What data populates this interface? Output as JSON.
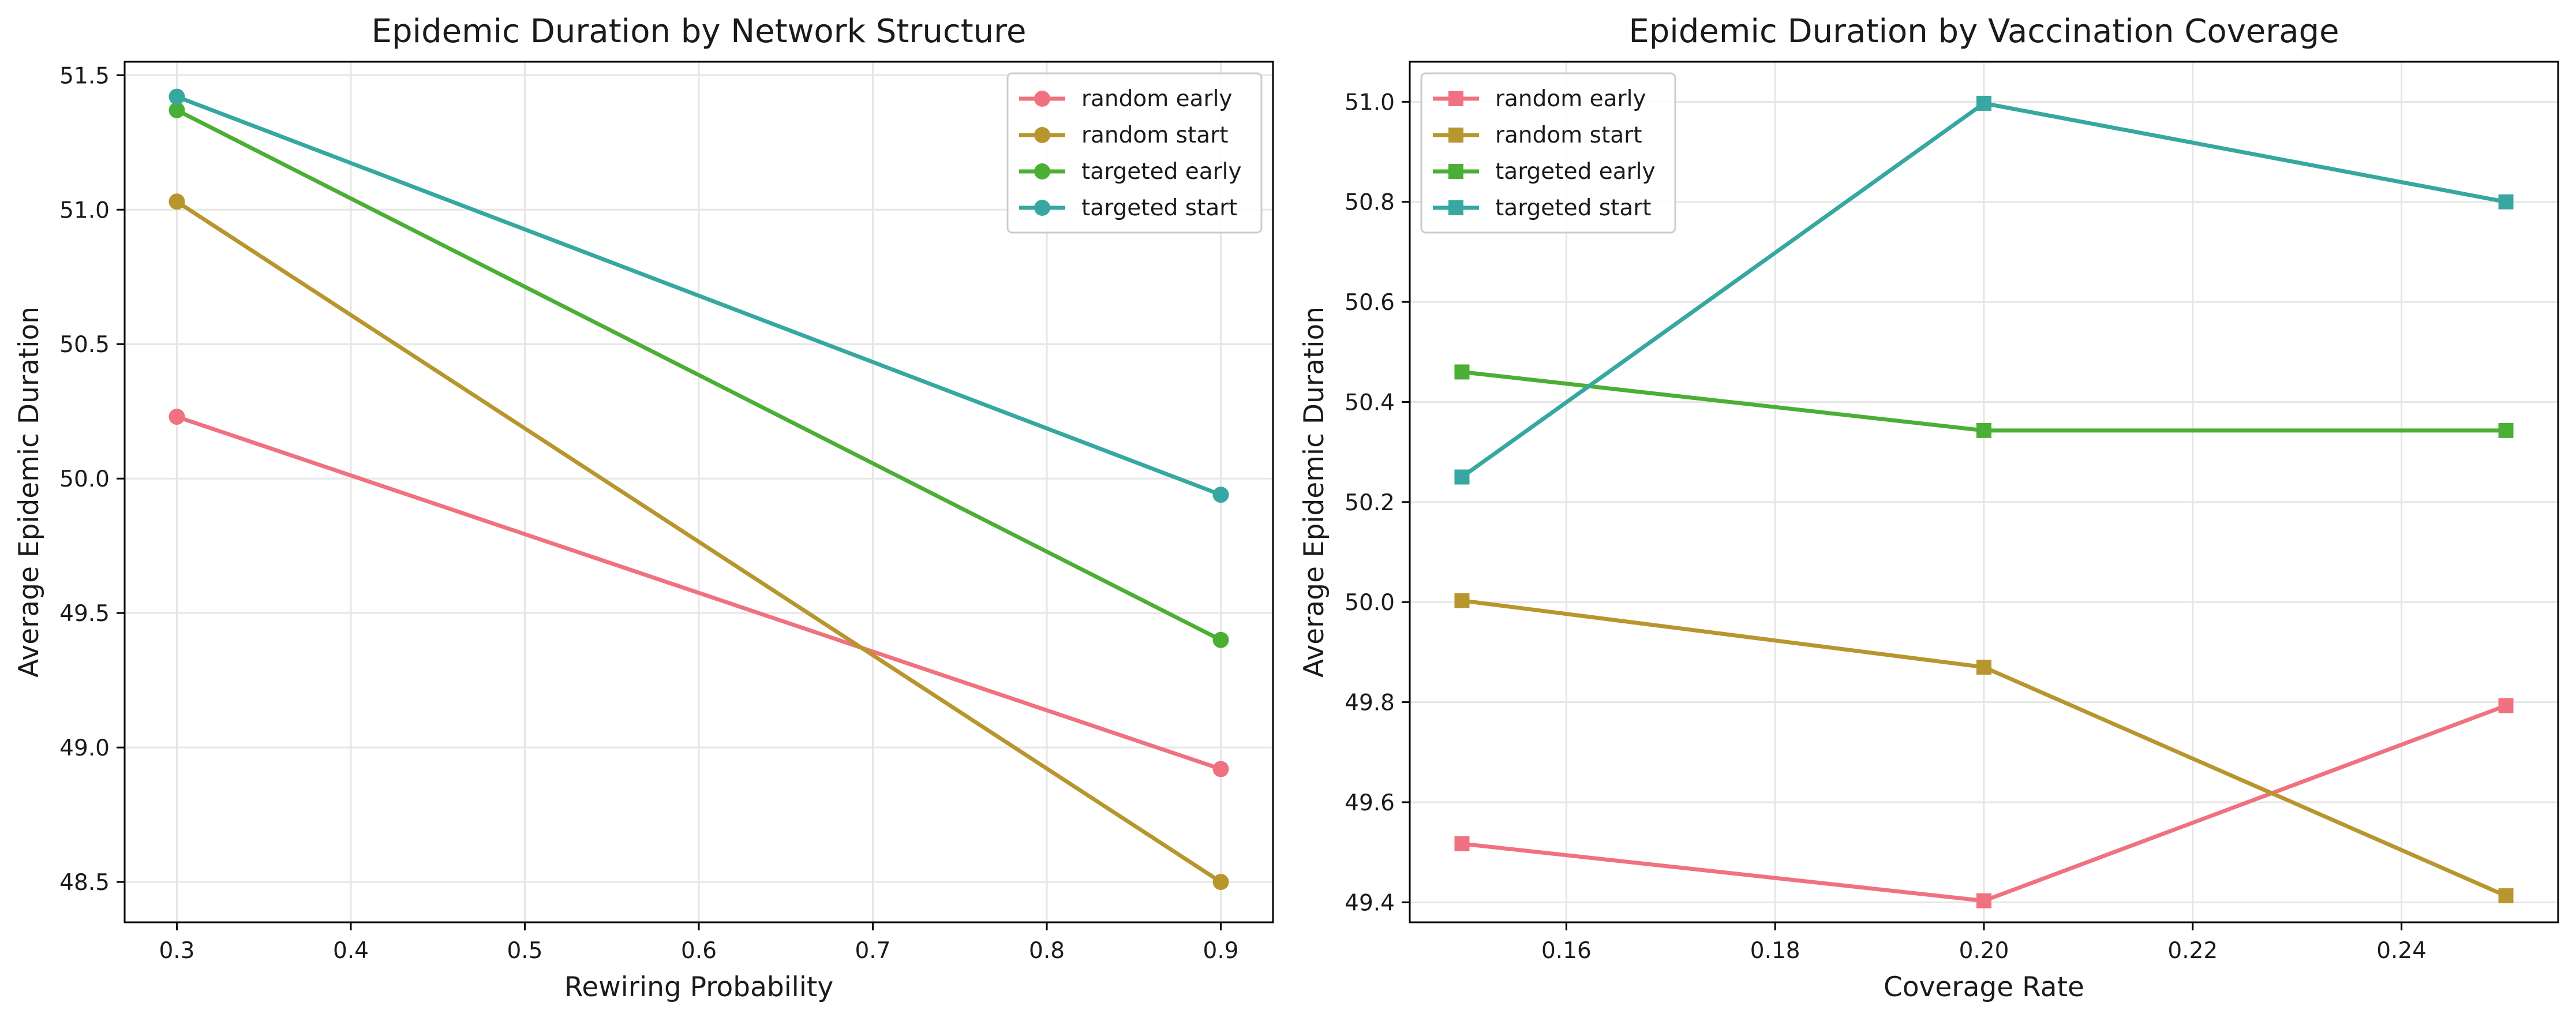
{
  "chart_data": [
    {
      "type": "line",
      "title": "Epidemic Duration by Network Structure",
      "xlabel": "Rewiring Probability",
      "ylabel": "Average Epidemic Duration",
      "marker": "circle",
      "grid": true,
      "legend_position": "top-right",
      "xlim": [
        0.27,
        0.93
      ],
      "ylim": [
        48.35,
        51.55
      ],
      "xticks": [
        0.3,
        0.4,
        0.5,
        0.6,
        0.7,
        0.8,
        0.9
      ],
      "xtick_labels": [
        "0.3",
        "0.4",
        "0.5",
        "0.6",
        "0.7",
        "0.8",
        "0.9"
      ],
      "yticks": [
        48.5,
        49.0,
        49.5,
        50.0,
        50.5,
        51.0,
        51.5
      ],
      "ytick_labels": [
        "48.5",
        "49.0",
        "49.5",
        "50.0",
        "50.5",
        "51.0",
        "51.5"
      ],
      "x": [
        0.3,
        0.9
      ],
      "series": [
        {
          "name": "random early",
          "color": "#f0717f",
          "values": [
            50.23,
            48.92
          ]
        },
        {
          "name": "random start",
          "color": "#b8962e",
          "values": [
            51.03,
            48.5
          ]
        },
        {
          "name": "targeted early",
          "color": "#4caf35",
          "values": [
            51.37,
            49.4
          ]
        },
        {
          "name": "targeted start",
          "color": "#36a7a1",
          "values": [
            51.42,
            49.94
          ]
        }
      ]
    },
    {
      "type": "line",
      "title": "Epidemic Duration by Vaccination Coverage",
      "xlabel": "Coverage Rate",
      "ylabel": "Average Epidemic Duration",
      "marker": "square",
      "grid": true,
      "legend_position": "top-left",
      "xlim": [
        0.145,
        0.255
      ],
      "ylim": [
        49.36,
        51.08
      ],
      "xticks": [
        0.16,
        0.18,
        0.2,
        0.22,
        0.24
      ],
      "xtick_labels": [
        "0.16",
        "0.18",
        "0.20",
        "0.22",
        "0.24"
      ],
      "yticks": [
        49.4,
        49.6,
        49.8,
        50.0,
        50.2,
        50.4,
        50.6,
        50.8,
        51.0
      ],
      "ytick_labels": [
        "49.4",
        "49.6",
        "49.8",
        "50.0",
        "50.2",
        "50.4",
        "50.6",
        "50.8",
        "51.0"
      ],
      "x": [
        0.15,
        0.2,
        0.25
      ],
      "series": [
        {
          "name": "random early",
          "color": "#f0717f",
          "values": [
            49.517,
            49.403,
            49.793
          ]
        },
        {
          "name": "random start",
          "color": "#b8962e",
          "values": [
            50.003,
            49.87,
            49.413
          ]
        },
        {
          "name": "targeted early",
          "color": "#4caf35",
          "values": [
            50.46,
            50.343,
            50.343
          ]
        },
        {
          "name": "targeted start",
          "color": "#36a7a1",
          "values": [
            50.25,
            50.997,
            50.8
          ]
        }
      ]
    }
  ]
}
